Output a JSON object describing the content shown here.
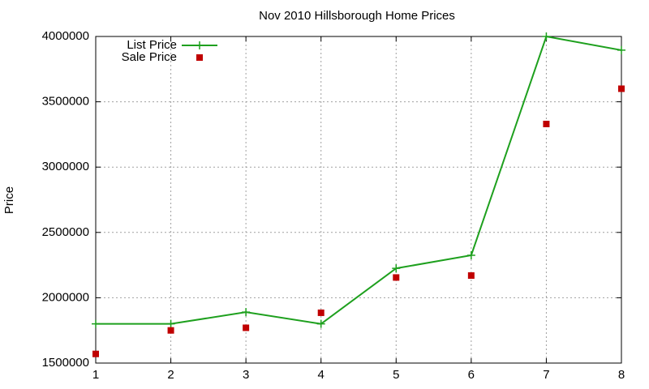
{
  "chart_data": {
    "type": "line",
    "title": "Nov 2010 Hillsborough Home Prices",
    "y_label": "Price",
    "x": [
      1,
      2,
      3,
      4,
      5,
      6,
      7,
      8
    ],
    "series": [
      {
        "name": "List Price",
        "color": "#1ea01e",
        "marker": "plus",
        "line": true,
        "values": [
          1800000,
          1800000,
          1890000,
          1800000,
          2225000,
          2325000,
          4000000,
          3895000
        ]
      },
      {
        "name": "Sale Price",
        "color": "#c00000",
        "marker": "square",
        "line": false,
        "values": [
          1570000,
          1750000,
          1770000,
          1885000,
          2155000,
          2170000,
          3330000,
          3600000
        ]
      }
    ],
    "xlim": [
      1,
      8
    ],
    "xticks": [
      1,
      2,
      3,
      4,
      5,
      6,
      7,
      8
    ],
    "ylim": [
      1500000,
      4000000
    ],
    "yticks": [
      1500000,
      2000000,
      2500000,
      3000000,
      3500000,
      4000000
    ],
    "grid": true,
    "legend": "top-left"
  }
}
